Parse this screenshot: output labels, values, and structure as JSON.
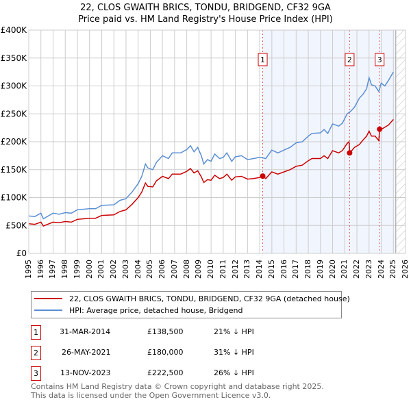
{
  "chart_data": {
    "type": "line",
    "title": "22, CLOS GWAITH BRICS, TONDU, BRIDGEND, CF32 9GA",
    "subtitle": "Price paid vs. HM Land Registry's House Price Index (HPI)",
    "xlim": [
      1995,
      2026
    ],
    "ylim": [
      0,
      400000
    ],
    "y_ticks": [
      {
        "v": 0,
        "label": "£0"
      },
      {
        "v": 50000,
        "label": "£50K"
      },
      {
        "v": 100000,
        "label": "£100K"
      },
      {
        "v": 150000,
        "label": "£150K"
      },
      {
        "v": 200000,
        "label": "£200K"
      },
      {
        "v": 250000,
        "label": "£250K"
      },
      {
        "v": 300000,
        "label": "£300K"
      },
      {
        "v": 350000,
        "label": "£350K"
      },
      {
        "v": 400000,
        "label": "£400K"
      }
    ],
    "x_ticks": [
      "1995",
      "1996",
      "1997",
      "1998",
      "1999",
      "2000",
      "2001",
      "2002",
      "2003",
      "2004",
      "2005",
      "2006",
      "2007",
      "2008",
      "2009",
      "2010",
      "2011",
      "2012",
      "2013",
      "2014",
      "2015",
      "2016",
      "2017",
      "2018",
      "2019",
      "2020",
      "2021",
      "2022",
      "2023",
      "2024",
      "2025",
      "2026"
    ],
    "grid": true,
    "shaded_range": [
      2014.25,
      2025.2
    ],
    "hatched_from": 2025.2,
    "series": [
      {
        "name": "22, CLOS GWAITH BRICS, TONDU, BRIDGEND, CF32 9GA (detached house)",
        "color": "#cc0000",
        "x": [
          1995,
          1995.5,
          1996,
          1996.2,
          1997,
          1997.5,
          1998,
          1998.5,
          1999,
          2000,
          2000.5,
          2001,
          2002,
          2002.5,
          2003,
          2003.5,
          2004,
          2004.3,
          2004.6,
          2004.8,
          2005.2,
          2005.5,
          2006,
          2006.5,
          2006.8,
          2007.5,
          2008,
          2008.3,
          2008.6,
          2008.9,
          2009.2,
          2009.4,
          2009.7,
          2010,
          2010.3,
          2010.7,
          2011,
          2011.3,
          2011.7,
          2012,
          2012.5,
          2013,
          2013.5,
          2014,
          2014.25,
          2014.5,
          2015,
          2015.5,
          2016,
          2016.5,
          2017,
          2017.5,
          2018,
          2018.3,
          2019,
          2019.3,
          2019.6,
          2020,
          2020.5,
          2020.8,
          2021.2,
          2021.35,
          2021.42,
          2021.8,
          2022.2,
          2022.5,
          2022.8,
          2023,
          2023.2,
          2023.5,
          2023.8,
          2023.87,
          2024,
          2024.3,
          2024.6,
          2025
        ],
        "y": [
          53000,
          52000,
          56000,
          49000,
          56000,
          55000,
          57000,
          56000,
          61000,
          63000,
          63000,
          68000,
          69000,
          75000,
          78000,
          88000,
          100000,
          110000,
          126000,
          120000,
          119000,
          130000,
          138000,
          134000,
          142000,
          142000,
          147000,
          152000,
          144000,
          148000,
          137000,
          127000,
          132000,
          131000,
          140000,
          134000,
          136000,
          142000,
          131000,
          137000,
          138000,
          133000,
          134000,
          136000,
          138500,
          134000,
          146000,
          142000,
          146000,
          150000,
          156000,
          158000,
          166000,
          170000,
          170000,
          175000,
          170000,
          184000,
          180000,
          184000,
          197000,
          200000,
          180000,
          190000,
          195000,
          203000,
          210000,
          219000,
          210000,
          210000,
          202000,
          222500,
          222000,
          226000,
          230000,
          240000
        ]
      },
      {
        "name": "HPI: Average price, detached house, Bridgend",
        "color": "#5b8fd4",
        "x": [
          1995,
          1995.5,
          1996,
          1996.2,
          1997,
          1997.5,
          1998,
          1998.5,
          1999,
          2000,
          2000.5,
          2001,
          2002,
          2002.5,
          2003,
          2003.5,
          2004,
          2004.3,
          2004.6,
          2004.8,
          2005.2,
          2005.5,
          2006,
          2006.5,
          2006.8,
          2007.5,
          2008,
          2008.3,
          2008.6,
          2008.9,
          2009.2,
          2009.4,
          2009.7,
          2010,
          2010.3,
          2010.7,
          2011,
          2011.3,
          2011.7,
          2012,
          2012.5,
          2013,
          2013.5,
          2014,
          2014.5,
          2015,
          2015.5,
          2016,
          2016.5,
          2017,
          2017.5,
          2018,
          2018.3,
          2019,
          2019.3,
          2019.6,
          2020,
          2020.5,
          2020.8,
          2021.2,
          2021.5,
          2021.8,
          2022.2,
          2022.5,
          2022.8,
          2023,
          2023.2,
          2023.5,
          2023.8,
          2024,
          2024.3,
          2024.6,
          2025
        ],
        "y": [
          67000,
          66000,
          72000,
          62000,
          72000,
          70000,
          73000,
          72000,
          78000,
          80000,
          80000,
          86000,
          87000,
          95000,
          98000,
          110000,
          125000,
          138000,
          160000,
          153000,
          150000,
          163000,
          175000,
          170000,
          180000,
          180000,
          186000,
          193000,
          182000,
          190000,
          175000,
          160000,
          168000,
          165000,
          178000,
          170000,
          172000,
          180000,
          165000,
          173000,
          175000,
          168000,
          170000,
          172000,
          170000,
          185000,
          180000,
          185000,
          190000,
          198000,
          200000,
          210000,
          215000,
          216000,
          222000,
          215000,
          232000,
          228000,
          233000,
          250000,
          255000,
          262000,
          278000,
          285000,
          295000,
          315000,
          302000,
          300000,
          290000,
          305000,
          300000,
          310000,
          325000
        ]
      }
    ],
    "annotations": [
      {
        "label": "1",
        "x": 2014.25,
        "y": 138500
      },
      {
        "label": "2",
        "x": 2021.4,
        "y": 180000
      },
      {
        "label": "3",
        "x": 2023.87,
        "y": 222500
      }
    ]
  },
  "legend": {
    "property": "22, CLOS GWAITH BRICS, TONDU, BRIDGEND, CF32 9GA (detached house)",
    "hpi": "HPI: Average price, detached house, Bridgend"
  },
  "sales": [
    {
      "num": "1",
      "date": "31-MAR-2014",
      "price": "£138,500",
      "delta": "21% ↓ HPI"
    },
    {
      "num": "2",
      "date": "26-MAY-2021",
      "price": "£180,000",
      "delta": "31% ↓ HPI"
    },
    {
      "num": "3",
      "date": "13-NOV-2023",
      "price": "£222,500",
      "delta": "26% ↓ HPI"
    }
  ],
  "footer": {
    "line1": "Contains HM Land Registry data © Crown copyright and database right 2025.",
    "line2": "This data is licensed under the Open Government Licence v3.0."
  }
}
